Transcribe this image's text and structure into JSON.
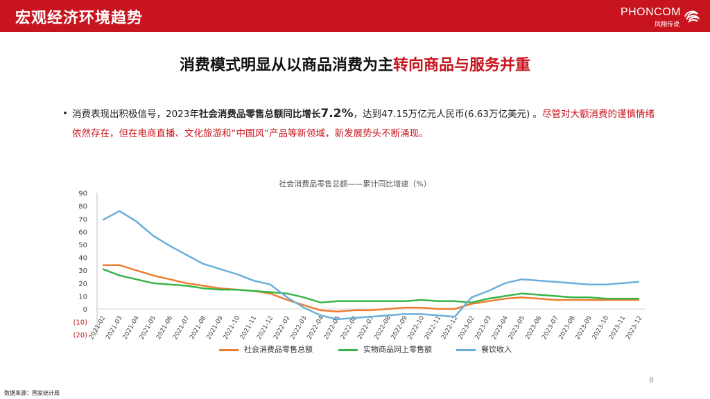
{
  "header": {
    "title": "宏观经济环境趋势",
    "logo_text": "PHONCOM",
    "logo_sub": "凤翔传说"
  },
  "headline": {
    "part1": "消费模式明显从以商品消费为主",
    "part2": "转向商品与服务并重"
  },
  "bullet": {
    "t1": "消费表现出积极信号，2023年",
    "t2": "社会消费品零售总额同比增长",
    "t3": "7.2%",
    "t4": "，达到47.15万亿元人民币(6.63万亿美元) 。",
    "t5": "尽管对大额消费的谨慎情绪依然存在，但在电商直播、文化旅游和“中国风”产品等新领域，新发展势头不断涌现。"
  },
  "chart_data": {
    "type": "line",
    "title": "社会消费品零售总额——累计同比增速（%）",
    "x": [
      "2021-02",
      "2021-03",
      "2021-04",
      "2021-05",
      "2021-06",
      "2021-07",
      "2021-08",
      "2021-09",
      "2021-10",
      "2021-11",
      "2021-12",
      "2022-02",
      "2022-03",
      "2022-04",
      "2022-05",
      "2022-06",
      "2022-07",
      "2022-08",
      "2022-09",
      "2022-10",
      "2022-11",
      "2022-12",
      "2023-02",
      "2023-03",
      "2023-04",
      "2023-05",
      "2023-06",
      "2023-07",
      "2023-08",
      "2023-09",
      "2023-10",
      "2023-11",
      "2023-12"
    ],
    "y_ticks": [
      "90",
      "80",
      "70",
      "60",
      "50",
      "40",
      "30",
      "20",
      "10",
      "0",
      "(10)",
      "(20)"
    ],
    "ylim": [
      -20,
      90
    ],
    "series": [
      {
        "name": "社会消费品零售总额",
        "color": "#ed7d31",
        "values": [
          34,
          34,
          30,
          26,
          23,
          20,
          18,
          16,
          15,
          14,
          12,
          7,
          3,
          -1,
          -2,
          -1,
          -1,
          0,
          1,
          1,
          0,
          0,
          4,
          6,
          8,
          9,
          8,
          7,
          7,
          7,
          7,
          7,
          7
        ]
      },
      {
        "name": "实物商品网上零售额",
        "color": "#38b549",
        "values": [
          31,
          26,
          23,
          20,
          19,
          18,
          16,
          15,
          15,
          14,
          13,
          12,
          9,
          5,
          6,
          6,
          6,
          6,
          6,
          7,
          6,
          6,
          5,
          8,
          10,
          12,
          11,
          10,
          9,
          9,
          8,
          8,
          8
        ]
      },
      {
        "name": "餐饮收入",
        "color": "#6aafdb",
        "values": [
          69,
          76,
          68,
          57,
          49,
          42,
          35,
          31,
          27,
          22,
          19,
          9,
          1,
          -5,
          -8,
          -7,
          -6,
          -5,
          -4,
          -4,
          -5,
          -6,
          9,
          14,
          20,
          23,
          22,
          21,
          20,
          19,
          19,
          20,
          21
        ]
      }
    ]
  },
  "page_number": "8",
  "source": "数据来源：国家统计局"
}
